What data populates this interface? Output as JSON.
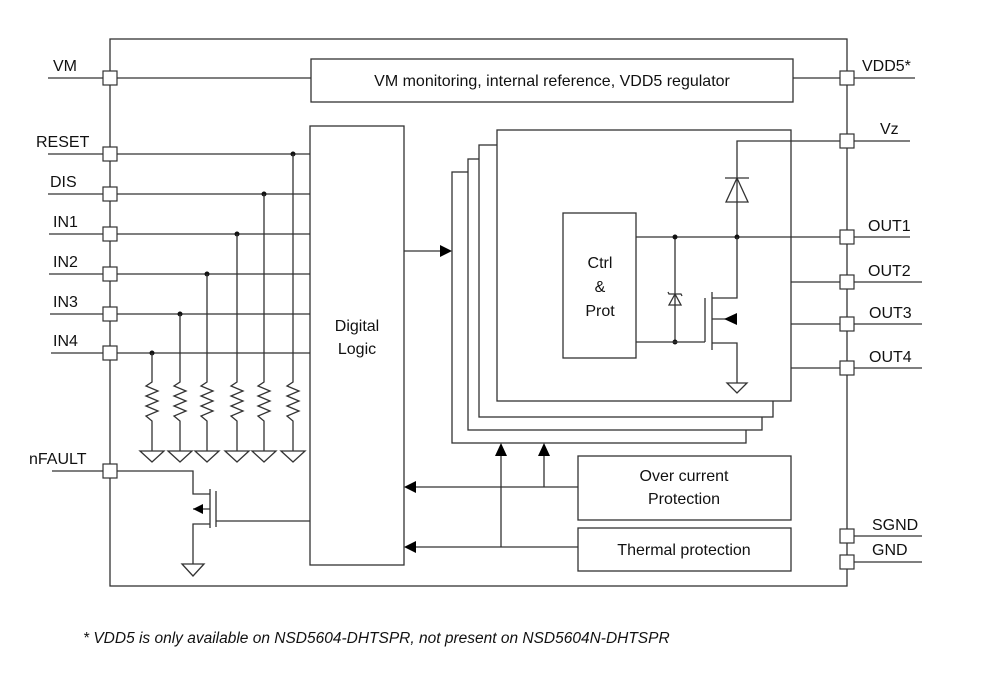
{
  "pins_left": {
    "vm": "VM",
    "reset": "RESET",
    "dis": "DIS",
    "in1": "IN1",
    "in2": "IN2",
    "in3": "IN3",
    "in4": "IN4",
    "nfault": "nFAULT"
  },
  "pins_right": {
    "vdd5": "VDD5*",
    "vz": "Vz",
    "out1": "OUT1",
    "out2": "OUT2",
    "out3": "OUT3",
    "out4": "OUT4",
    "sgnd": "SGND",
    "gnd": "GND"
  },
  "blocks": {
    "regulator": "VM monitoring, internal reference, VDD5 regulator",
    "digital_logic": [
      "Digital",
      "Logic"
    ],
    "ctrl_prot": [
      "Ctrl",
      "&",
      "Prot"
    ],
    "over_current": [
      "Over current",
      "Protection"
    ],
    "thermal": "Thermal protection"
  },
  "footnote": "* VDD5 is only available on NSD5604-DHTSPR, not present on NSD5604N-DHTSPR"
}
